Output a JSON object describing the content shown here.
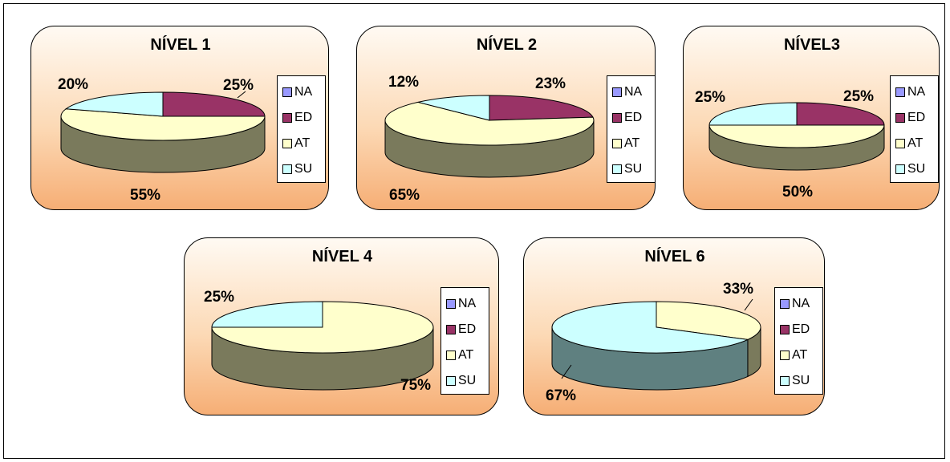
{
  "colors": {
    "NA": "#9999ff",
    "ED": "#993366",
    "AT": "#ffffcc",
    "SU": "#ccffff",
    "side_default": "#7a7a5c",
    "side_su": "#5f8080"
  },
  "legend": [
    "NA",
    "ED",
    "AT",
    "SU"
  ],
  "chart_data": [
    {
      "type": "pie",
      "title": "NÍVEL 1",
      "categories": [
        "NA",
        "ED",
        "AT",
        "SU"
      ],
      "values": [
        0,
        25,
        55,
        20
      ],
      "labels": [
        "25%",
        "55%",
        "20%"
      ]
    },
    {
      "type": "pie",
      "title": "NÍVEL 2",
      "categories": [
        "NA",
        "ED",
        "AT",
        "SU"
      ],
      "values": [
        0,
        23,
        65,
        12
      ],
      "labels": [
        "23%",
        "65%",
        "12%"
      ]
    },
    {
      "type": "pie",
      "title": "NÍVEL3",
      "categories": [
        "NA",
        "ED",
        "AT",
        "SU"
      ],
      "values": [
        0,
        25,
        50,
        25
      ],
      "labels": [
        "25%",
        "50%",
        "25%"
      ]
    },
    {
      "type": "pie",
      "title": "NÍVEL 4",
      "categories": [
        "NA",
        "ED",
        "AT",
        "SU"
      ],
      "values": [
        0,
        0,
        75,
        25
      ],
      "labels": [
        "75%",
        "25%"
      ]
    },
    {
      "type": "pie",
      "title": "NÍVEL 6",
      "categories": [
        "NA",
        "ED",
        "AT",
        "SU"
      ],
      "values": [
        0,
        0,
        33,
        67
      ],
      "labels": [
        "33%",
        "67%"
      ]
    }
  ]
}
